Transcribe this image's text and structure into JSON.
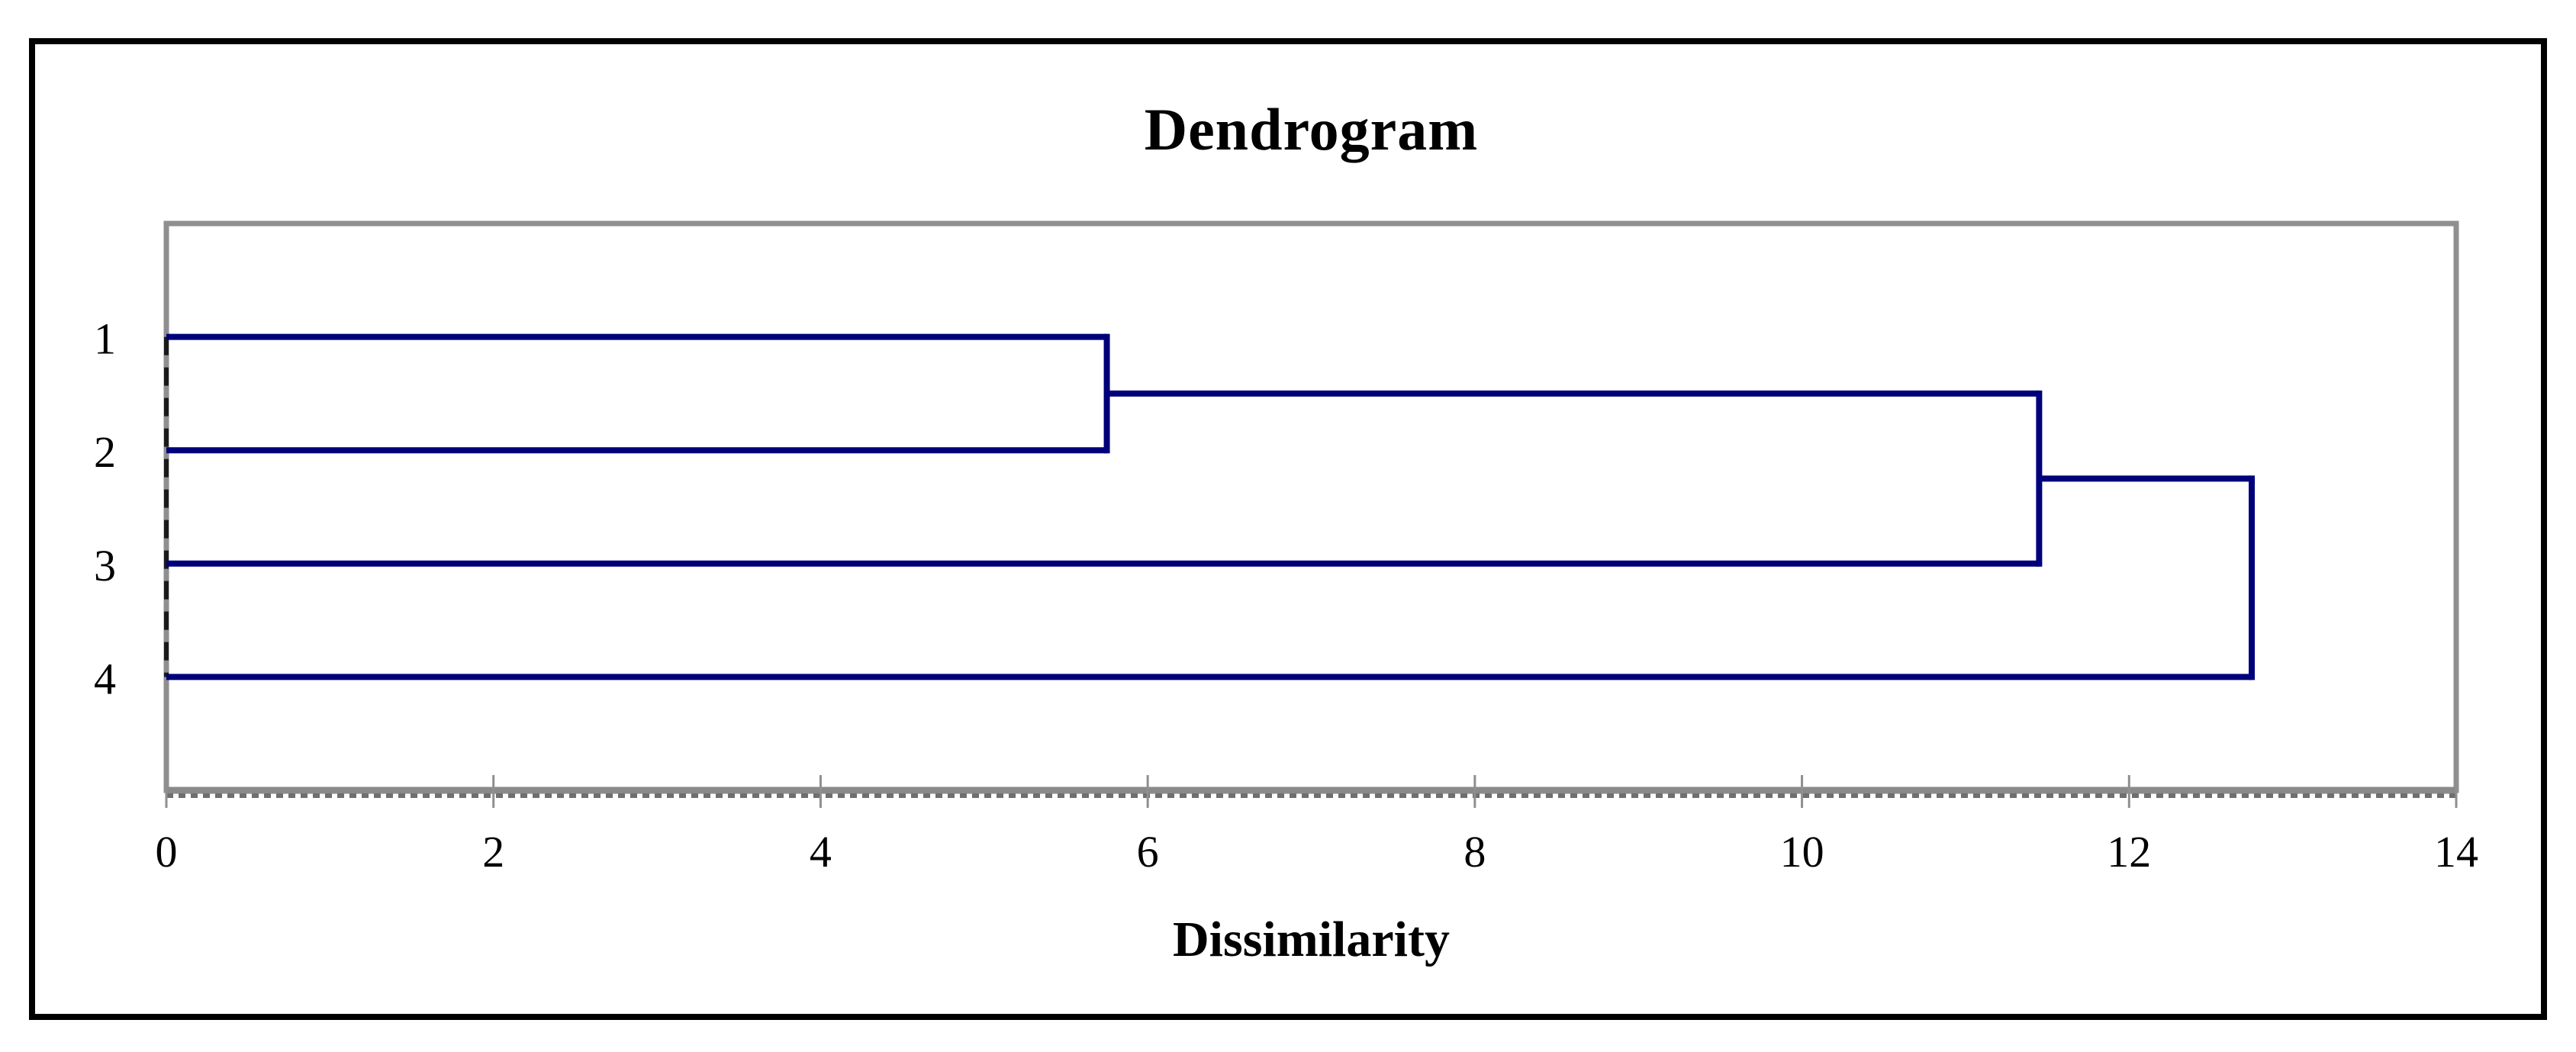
{
  "window": {
    "background": "#ffffff",
    "frame_color": "#000000"
  },
  "chart_data": {
    "type": "dendrogram",
    "orientation": "horizontal",
    "title": "Dendrogram",
    "xlabel": "Dissimilarity",
    "ylabel": "",
    "leaves": [
      "1",
      "2",
      "3",
      "4"
    ],
    "x_ticks": [
      0,
      2,
      4,
      6,
      8,
      10,
      12,
      14
    ],
    "xlim": [
      0,
      14
    ],
    "merges": [
      {
        "children": [
          {
            "type": "leaf",
            "index": 0
          },
          {
            "type": "leaf",
            "index": 1
          }
        ],
        "dissimilarity": 5.75
      },
      {
        "children": [
          {
            "type": "merge",
            "index": 0
          },
          {
            "type": "leaf",
            "index": 2
          }
        ],
        "dissimilarity": 11.45
      },
      {
        "children": [
          {
            "type": "merge",
            "index": 1
          },
          {
            "type": "leaf",
            "index": 3
          }
        ],
        "dissimilarity": 12.75
      }
    ],
    "grid": false,
    "legend": false,
    "colors": {
      "link": "#00007a",
      "plot_border": "#8f8f8f",
      "axis_line": "#8a8a8a",
      "axis_dash_texture": "#6f6f6f",
      "tick": "#8f8f8f",
      "zero_dashed_line": "#1a1a1a",
      "text": "#000000"
    }
  }
}
